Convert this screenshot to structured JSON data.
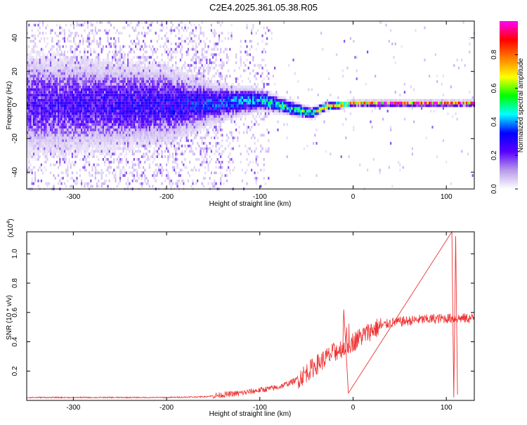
{
  "figure_title": "C2E4.2025.361.05.38.R05",
  "chart_data": [
    {
      "type": "heatmap",
      "title": "C2E4.2025.361.05.38.R05",
      "xlabel": "Height of straight line (km)",
      "ylabel": "Frequency (Hz)",
      "xlim": [
        -350,
        130
      ],
      "ylim": [
        -50,
        50
      ],
      "x_ticks": [
        -300,
        -200,
        -100,
        0,
        100
      ],
      "y_ticks": [
        -40,
        -20,
        0,
        20,
        40
      ],
      "colorbar": {
        "label": "Normalized spectral amplitude",
        "range": [
          0.0,
          1.0
        ],
        "ticks": [
          0.0,
          0.2,
          0.4,
          0.6,
          0.8
        ],
        "colors": [
          "#ffffff",
          "#b79be9",
          "#5a00ff",
          "#0000ff",
          "#00ffff",
          "#00ff00",
          "#ffff00",
          "#ff8000",
          "#ff0000",
          "#ff00ff"
        ]
      },
      "trend": [
        {
          "x": -350,
          "y": 0,
          "amp": 0.25,
          "spread": 40
        },
        {
          "x": -200,
          "y": 0,
          "amp": 0.3,
          "spread": 30
        },
        {
          "x": -150,
          "y": 1,
          "amp": 0.35,
          "spread": 15
        },
        {
          "x": -100,
          "y": 3,
          "amp": 0.45,
          "spread": 8
        },
        {
          "x": -80,
          "y": 0,
          "amp": 0.5,
          "spread": 6
        },
        {
          "x": -60,
          "y": -3,
          "amp": 0.55,
          "spread": 5
        },
        {
          "x": -45,
          "y": -5,
          "amp": 0.6,
          "spread": 4
        },
        {
          "x": -30,
          "y": -1,
          "amp": 0.8,
          "spread": 3
        },
        {
          "x": 0,
          "y": 1,
          "amp": 0.95,
          "spread": 2
        },
        {
          "x": 100,
          "y": 1,
          "amp": 0.95,
          "spread": 2
        },
        {
          "x": 130,
          "y": 1,
          "amp": 0.9,
          "spread": 2
        }
      ]
    },
    {
      "type": "line",
      "xlabel": "Height of straight line (km)",
      "ylabel": "SNR (10 * v/v)",
      "y_multiplier": "(x10",
      "y_multiplier_exp": "4",
      "y_multiplier_close": ")",
      "xlim": [
        -350,
        130
      ],
      "ylim": [
        0,
        1.15
      ],
      "x_ticks": [
        -300,
        -200,
        -100,
        0,
        100
      ],
      "y_ticks": [
        0.2,
        0.4,
        0.6,
        0.8,
        1.0
      ],
      "color": "#ee3333",
      "envelope": [
        {
          "x": -350,
          "y": 0.02
        },
        {
          "x": -200,
          "y": 0.02
        },
        {
          "x": -160,
          "y": 0.025
        },
        {
          "x": -120,
          "y": 0.05
        },
        {
          "x": -80,
          "y": 0.09
        },
        {
          "x": -60,
          "y": 0.14
        },
        {
          "x": -40,
          "y": 0.24
        },
        {
          "x": -20,
          "y": 0.33
        },
        {
          "x": 0,
          "y": 0.4
        },
        {
          "x": 20,
          "y": 0.48
        },
        {
          "x": 40,
          "y": 0.53
        },
        {
          "x": 70,
          "y": 0.55
        },
        {
          "x": 100,
          "y": 0.56
        },
        {
          "x": 130,
          "y": 0.56
        }
      ],
      "spikes": [
        {
          "x": -10,
          "y": 0.62
        },
        {
          "x": -5,
          "y": 0.05
        },
        {
          "x": 106,
          "y": 1.15
        },
        {
          "x": 108,
          "y": 0.02
        },
        {
          "x": 110,
          "y": 1.12
        },
        {
          "x": 112,
          "y": 0.04
        }
      ]
    }
  ]
}
